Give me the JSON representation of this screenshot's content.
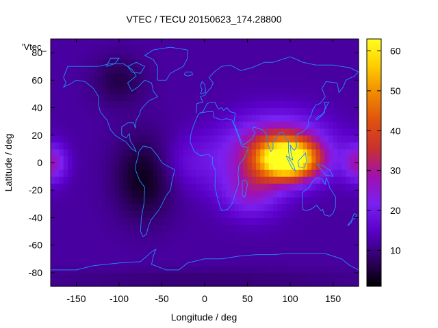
{
  "chart_data": {
    "type": "heatmap",
    "title": "VTEC / TECU 20150623_174.28800",
    "xlabel": "Longitude / deg",
    "ylabel": "Latitude / deg",
    "xlim": [
      -180,
      180
    ],
    "ylim": [
      -90,
      90
    ],
    "x_ticks": [
      -150,
      -100,
      -50,
      0,
      50,
      100,
      150
    ],
    "y_ticks": [
      -80,
      -60,
      -40,
      -20,
      0,
      20,
      40,
      60,
      80
    ],
    "legend_label": "'Vtec_",
    "colorbar": {
      "range": [
        1,
        63
      ],
      "ticks": [
        10,
        20,
        30,
        40,
        50,
        60
      ],
      "colors": [
        "#000000",
        "#300066",
        "#5a00c8",
        "#7a20f0",
        "#a010b0",
        "#c83030",
        "#e05010",
        "#f08800",
        "#ffcc00",
        "#ffff20"
      ]
    },
    "coastline_color": "#1e90ff",
    "grid": false,
    "peak": {
      "lon": 98,
      "lat": 2,
      "value": 63
    }
  }
}
